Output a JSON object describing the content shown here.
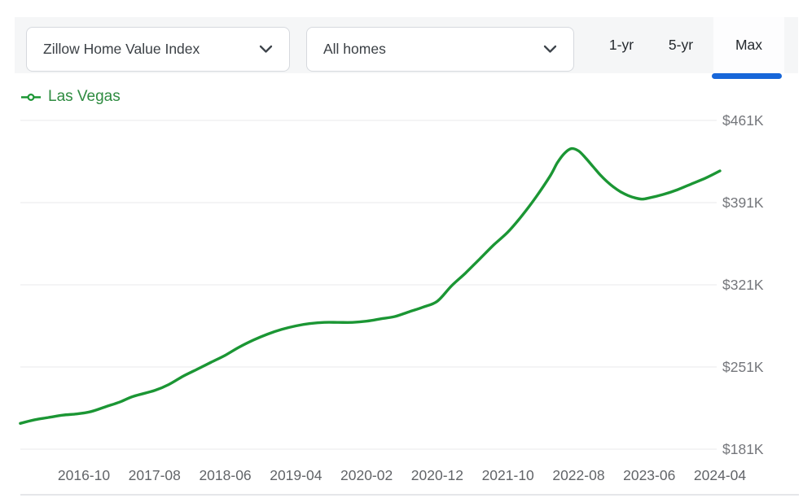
{
  "toolbar": {
    "metric_select": {
      "value": "Zillow Home Value Index"
    },
    "segment_select": {
      "value": "All homes"
    },
    "range_tabs": [
      {
        "label": "1-yr",
        "active": false
      },
      {
        "label": "5-yr",
        "active": false
      },
      {
        "label": "Max",
        "active": true
      }
    ]
  },
  "legend": {
    "label": "Las Vegas"
  },
  "colors": {
    "line_green": "#1b9634",
    "legend_green": "#2e8b40",
    "accent_blue": "#1766d9",
    "gridline": "#f0f0f2",
    "y_label": "#74767b",
    "x_label": "#616468"
  },
  "chart_data": {
    "type": "line",
    "title": "",
    "xlabel": "",
    "ylabel": "",
    "unit": "USD thousands",
    "grid": "horizontal-only",
    "legend_position": "top-left",
    "ylim_k": [
      181,
      461
    ],
    "y_ticks": [
      {
        "label": "$461K",
        "value": 461
      },
      {
        "label": "$391K",
        "value": 391
      },
      {
        "label": "$321K",
        "value": 321
      },
      {
        "label": "$251K",
        "value": 251
      },
      {
        "label": "$181K",
        "value": 181
      }
    ],
    "x_ticks": [
      "2016-10",
      "2017-08",
      "2018-06",
      "2019-04",
      "2020-02",
      "2020-12",
      "2021-10",
      "2022-08",
      "2023-06",
      "2024-04"
    ],
    "series": [
      {
        "name": "Las Vegas",
        "points": [
          [
            "2016-01",
            203
          ],
          [
            "2016-03",
            206
          ],
          [
            "2016-05",
            208
          ],
          [
            "2016-07",
            210
          ],
          [
            "2016-09",
            211
          ],
          [
            "2016-11",
            213
          ],
          [
            "2017-01",
            217
          ],
          [
            "2017-03",
            221
          ],
          [
            "2017-05",
            226
          ],
          [
            "2017-08",
            231
          ],
          [
            "2017-10",
            236
          ],
          [
            "2017-12",
            243
          ],
          [
            "2018-02",
            249
          ],
          [
            "2018-04",
            255
          ],
          [
            "2018-06",
            261
          ],
          [
            "2018-08",
            268
          ],
          [
            "2018-10",
            274
          ],
          [
            "2018-12",
            279
          ],
          [
            "2019-02",
            283
          ],
          [
            "2019-04",
            286
          ],
          [
            "2019-06",
            288
          ],
          [
            "2019-08",
            289
          ],
          [
            "2019-10",
            289
          ],
          [
            "2019-12",
            289
          ],
          [
            "2020-02",
            290
          ],
          [
            "2020-04",
            292
          ],
          [
            "2020-06",
            294
          ],
          [
            "2020-08",
            298
          ],
          [
            "2020-10",
            302
          ],
          [
            "2020-12",
            307
          ],
          [
            "2021-02",
            320
          ],
          [
            "2021-04",
            331
          ],
          [
            "2021-06",
            343
          ],
          [
            "2021-08",
            355
          ],
          [
            "2021-10",
            366
          ],
          [
            "2021-12",
            380
          ],
          [
            "2022-02",
            396
          ],
          [
            "2022-04",
            414
          ],
          [
            "2022-05",
            425
          ],
          [
            "2022-06",
            433
          ],
          [
            "2022-07",
            437
          ],
          [
            "2022-08",
            435
          ],
          [
            "2022-09",
            429
          ],
          [
            "2022-10",
            422
          ],
          [
            "2022-11",
            415
          ],
          [
            "2022-12",
            409
          ],
          [
            "2023-01",
            404
          ],
          [
            "2023-02",
            400
          ],
          [
            "2023-03",
            397
          ],
          [
            "2023-04",
            395
          ],
          [
            "2023-05",
            394
          ],
          [
            "2023-06",
            395
          ],
          [
            "2023-08",
            398
          ],
          [
            "2023-10",
            402
          ],
          [
            "2023-12",
            407
          ],
          [
            "2024-02",
            412
          ],
          [
            "2024-04",
            418
          ]
        ]
      }
    ]
  }
}
